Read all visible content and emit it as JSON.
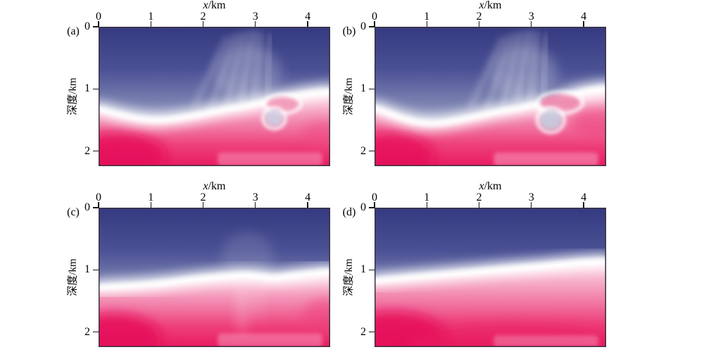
{
  "figure": {
    "kind": "2x2 grid of smoothed seismic depth-velocity model heatmaps",
    "background": "#ffffff",
    "border_color": "#39313f",
    "tick_color": "#1a1a1a",
    "text_color": "#000000"
  },
  "chart_data": {
    "type": "heatmap",
    "title": "",
    "x_axis": {
      "label_var": "x",
      "label_unit": "km",
      "position": "top",
      "ticks": [
        0,
        1,
        2,
        3,
        4
      ],
      "range_km": [
        0,
        4.43
      ]
    },
    "y_axis": {
      "label": "深度/km",
      "direction": "down",
      "ticks": [
        0,
        1,
        2
      ],
      "range_km": [
        0,
        2.24
      ]
    },
    "colormap": {
      "description": "dark indigo-blue (shallow) grading through white band to pink and crimson (deep)",
      "blue_stops": [
        [
          0,
          "#353a80"
        ],
        [
          0.3,
          "#4a5094"
        ],
        [
          0.55,
          "#7b82b1"
        ],
        [
          0.75,
          "#b0b6d2"
        ],
        [
          0.9,
          "#e1e4ef"
        ],
        [
          1,
          "#f6f7fa"
        ]
      ],
      "pink_stops": [
        [
          0,
          "#fde9f0"
        ],
        [
          0.18,
          "#f8bcd3"
        ],
        [
          0.45,
          "#f17fa9"
        ],
        [
          0.72,
          "#ee417b"
        ],
        [
          1,
          "#e81b60"
        ]
      ],
      "band_color": "#ffffff",
      "red_blob": "#e60f5a",
      "patch_pink": "#f79fc0"
    },
    "interface_x_km": [
      0,
      0.4,
      0.8,
      1.2,
      1.6,
      2.0,
      2.4,
      2.8,
      3.1,
      3.35,
      3.6,
      4.0,
      4.43
    ],
    "panels": [
      {
        "id": "a",
        "label": "(a)",
        "interface_depth_km": [
          1.32,
          1.41,
          1.48,
          1.5,
          1.46,
          1.4,
          1.33,
          1.27,
          1.22,
          1.18,
          1.13,
          1.07,
          1.03
        ],
        "features": [
          {
            "type": "haze",
            "x": 2.85,
            "d": 0.75,
            "rx": 0.65,
            "ry": 0.45,
            "op": 0.2
          },
          {
            "type": "vstreak",
            "xt": 2.45,
            "xb": 1.85,
            "dt": 0.2,
            "db": 1.25,
            "op": 0.22
          },
          {
            "type": "vstreak",
            "xt": 2.62,
            "xb": 2.15,
            "dt": 0.15,
            "db": 1.3,
            "op": 0.25
          },
          {
            "type": "vstreak",
            "xt": 2.78,
            "xb": 2.45,
            "dt": 0.12,
            "db": 1.25,
            "op": 0.28
          },
          {
            "type": "vstreak",
            "xt": 2.95,
            "xb": 2.72,
            "dt": 0.1,
            "db": 1.2,
            "op": 0.3
          },
          {
            "type": "vstreak",
            "xt": 3.1,
            "xb": 2.98,
            "dt": 0.12,
            "db": 1.15,
            "op": 0.25
          },
          {
            "type": "vstreak",
            "xt": 3.28,
            "xb": 3.22,
            "dt": 0.15,
            "db": 1.1,
            "op": 0.2
          },
          {
            "type": "blob",
            "x": 0.35,
            "d": 2.08,
            "rx": 0.95,
            "ry": 0.38,
            "color": "#e60f5a",
            "op": 0.85
          },
          {
            "type": "blob",
            "x": 4.3,
            "d": 1.72,
            "rx": 0.42,
            "ry": 0.22,
            "color": "#ee4981",
            "op": 0.5
          },
          {
            "type": "patch",
            "x1": 2.28,
            "d1": 2.02,
            "x2": 4.28,
            "d2": 2.24,
            "color": "#f79fc0",
            "op": 0.5
          },
          {
            "type": "tongue",
            "x": 3.52,
            "d": 1.24,
            "rx": 0.3,
            "ry": 0.11,
            "color": "#f29ab9",
            "op": 0.95
          },
          {
            "type": "pocket",
            "x": 3.36,
            "d": 1.47,
            "rx": 0.17,
            "ry": 0.13,
            "color": "#cdd1e4",
            "op": 0.9
          }
        ]
      },
      {
        "id": "b",
        "label": "(b)",
        "interface_depth_km": [
          1.3,
          1.43,
          1.53,
          1.55,
          1.5,
          1.43,
          1.36,
          1.3,
          1.25,
          1.35,
          1.15,
          1.04,
          0.98
        ],
        "features": [
          {
            "type": "haze",
            "x": 2.85,
            "d": 0.75,
            "rx": 0.65,
            "ry": 0.45,
            "op": 0.22
          },
          {
            "type": "vstreak",
            "xt": 2.45,
            "xb": 1.85,
            "dt": 0.2,
            "db": 1.28,
            "op": 0.25
          },
          {
            "type": "vstreak",
            "xt": 2.62,
            "xb": 2.15,
            "dt": 0.15,
            "db": 1.32,
            "op": 0.28
          },
          {
            "type": "vstreak",
            "xt": 2.78,
            "xb": 2.45,
            "dt": 0.12,
            "db": 1.28,
            "op": 0.3
          },
          {
            "type": "vstreak",
            "xt": 2.95,
            "xb": 2.72,
            "dt": 0.1,
            "db": 1.22,
            "op": 0.32
          },
          {
            "type": "vstreak",
            "xt": 3.1,
            "xb": 2.98,
            "dt": 0.12,
            "db": 1.18,
            "op": 0.27
          },
          {
            "type": "vstreak",
            "xt": 3.28,
            "xb": 3.22,
            "dt": 0.15,
            "db": 1.12,
            "op": 0.22
          },
          {
            "type": "blob",
            "x": 0.3,
            "d": 2.1,
            "rx": 0.85,
            "ry": 0.4,
            "color": "#e60f5a",
            "op": 0.8
          },
          {
            "type": "blob",
            "x": 4.25,
            "d": 1.55,
            "rx": 0.5,
            "ry": 0.24,
            "color": "#ee4981",
            "op": 0.7
          },
          {
            "type": "patch",
            "x1": 2.28,
            "d1": 2.02,
            "x2": 4.28,
            "d2": 2.24,
            "color": "#f79fc0",
            "op": 0.55
          },
          {
            "type": "tongue",
            "x": 3.55,
            "d": 1.22,
            "rx": 0.38,
            "ry": 0.13,
            "color": "#ef8ab0",
            "op": 0.95
          },
          {
            "type": "pocket",
            "x": 3.37,
            "d": 1.5,
            "rx": 0.21,
            "ry": 0.16,
            "color": "#c6cbdf",
            "op": 0.92
          }
        ]
      },
      {
        "id": "c",
        "label": "(c)",
        "interface_depth_km": [
          1.28,
          1.26,
          1.24,
          1.21,
          1.17,
          1.13,
          1.1,
          1.08,
          1.1,
          1.12,
          1.1,
          1.06,
          1.02
        ],
        "features": [
          {
            "type": "haze",
            "x": 2.85,
            "d": 0.8,
            "rx": 0.5,
            "ry": 0.4,
            "op": 0.12
          },
          {
            "type": "vstreak",
            "xt": 2.75,
            "xb": 2.75,
            "dt": 0.55,
            "db": 1.05,
            "op": 0.15
          },
          {
            "type": "blob",
            "x": 0.3,
            "d": 2.12,
            "rx": 0.9,
            "ry": 0.42,
            "color": "#e60f5a",
            "op": 0.85
          },
          {
            "type": "blob",
            "x": 4.35,
            "d": 1.75,
            "rx": 0.45,
            "ry": 0.3,
            "color": "#ee417b",
            "op": 0.5
          },
          {
            "type": "patch",
            "x1": 2.28,
            "d1": 2.02,
            "x2": 4.28,
            "d2": 2.24,
            "color": "#f79fc0",
            "op": 0.5
          },
          {
            "type": "blob",
            "x": 2.75,
            "d": 1.6,
            "rx": 0.12,
            "ry": 0.45,
            "color": "#ffffff",
            "op": 0.2
          },
          {
            "type": "blob",
            "x": 3.05,
            "d": 1.5,
            "rx": 0.1,
            "ry": 0.35,
            "color": "#ffffff",
            "op": 0.12
          }
        ]
      },
      {
        "id": "d",
        "label": "(d)",
        "interface_depth_km": [
          1.17,
          1.14,
          1.11,
          1.08,
          1.05,
          1.02,
          0.99,
          0.96,
          0.94,
          0.92,
          0.9,
          0.87,
          0.85
        ],
        "features": [
          {
            "type": "blob",
            "x": 0.35,
            "d": 2.12,
            "rx": 1.05,
            "ry": 0.45,
            "color": "#e60f5a",
            "op": 0.85
          },
          {
            "type": "blob",
            "x": 2.6,
            "d": 2.2,
            "rx": 2.0,
            "ry": 0.35,
            "color": "#e81b60",
            "op": 0.5
          },
          {
            "type": "patch",
            "x1": 2.28,
            "d1": 2.05,
            "x2": 4.28,
            "d2": 2.24,
            "color": "#f79fc0",
            "op": 0.45
          }
        ]
      }
    ]
  }
}
